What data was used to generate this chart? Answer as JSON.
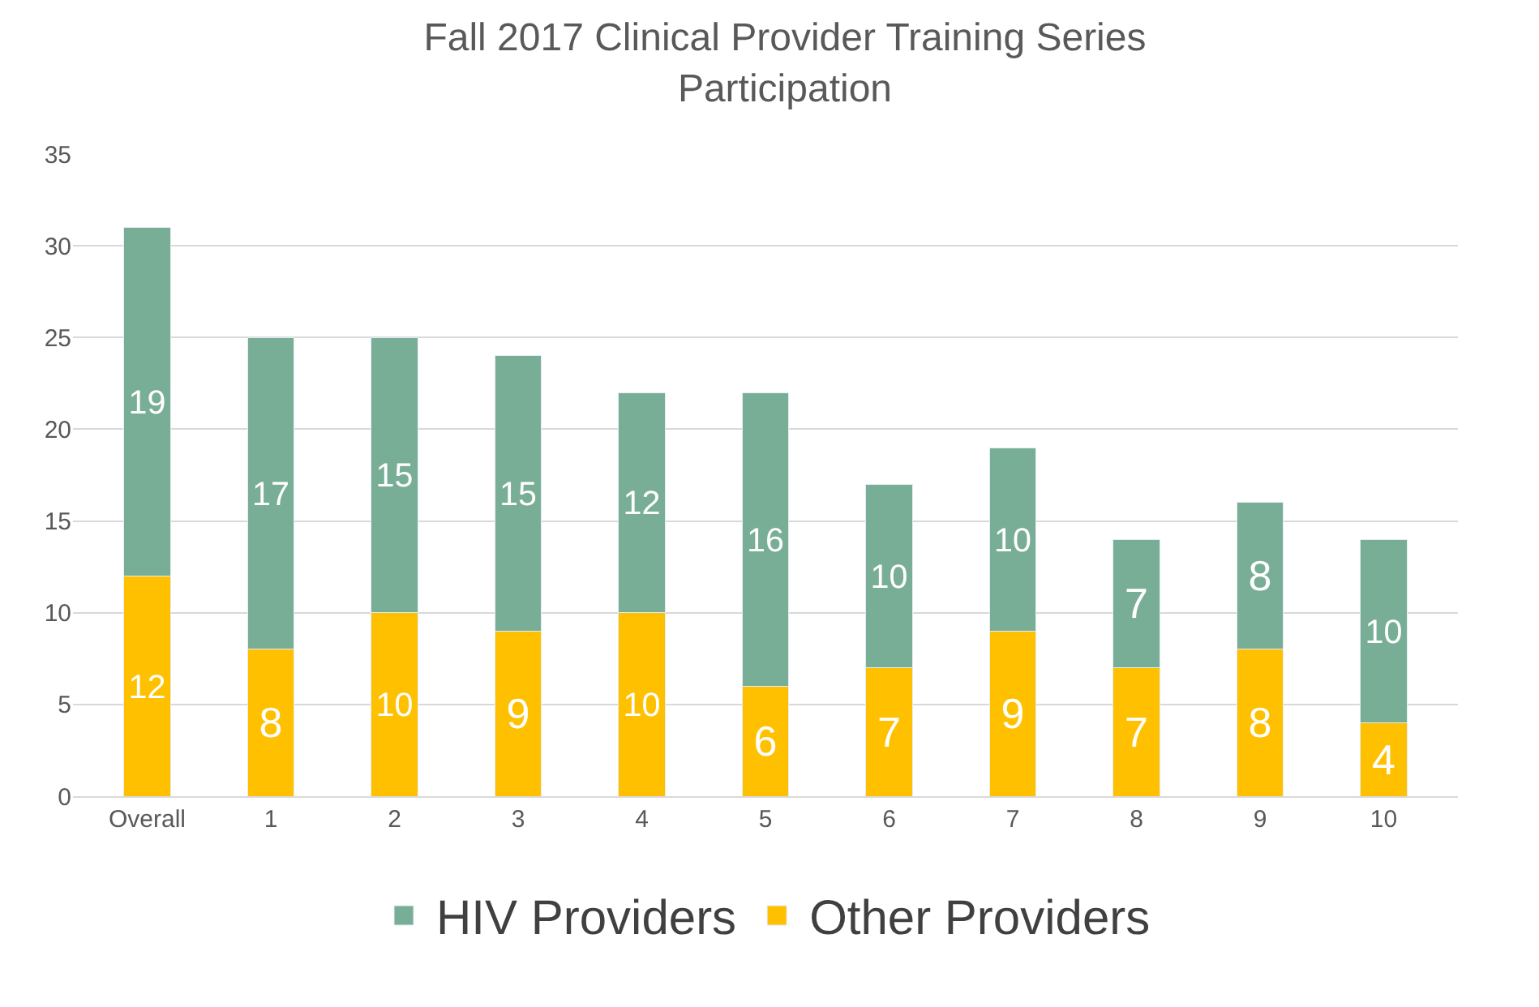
{
  "chart_data": {
    "type": "bar",
    "stacked": true,
    "title": "Fall 2017 Clinical Provider Training Series\nParticipation",
    "categories": [
      "Overall",
      "1",
      "2",
      "3",
      "4",
      "5",
      "6",
      "7",
      "8",
      "9",
      "10"
    ],
    "series": [
      {
        "name": "Other Providers",
        "color": "#ffc000",
        "values": [
          12,
          8,
          10,
          9,
          10,
          6,
          7,
          9,
          7,
          8,
          4
        ]
      },
      {
        "name": "HIV Providers",
        "color": "#79ae96",
        "values": [
          19,
          17,
          15,
          15,
          12,
          16,
          10,
          10,
          7,
          8,
          10
        ]
      }
    ],
    "ylim": [
      0,
      35
    ],
    "yticks": [
      0,
      5,
      10,
      15,
      20,
      25,
      30,
      35
    ],
    "grid": "y",
    "legend": "bottom",
    "data_labels": true
  }
}
